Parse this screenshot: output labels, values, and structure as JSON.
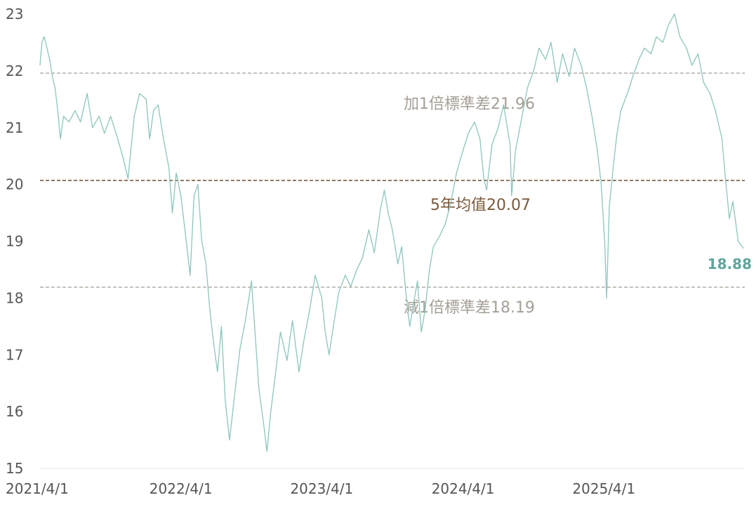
{
  "chart_data": {
    "type": "line",
    "x_ticks": [
      "2021/4/1",
      "2022/4/1",
      "2023/4/1",
      "2024/4/1",
      "2025/4/1"
    ],
    "y_ticks": [
      "15",
      "16",
      "17",
      "18",
      "19",
      "20",
      "21",
      "22",
      "23"
    ],
    "ylim": [
      15,
      23
    ],
    "xlim": [
      "2021-04-01",
      "2026-04-01"
    ],
    "grid": false,
    "series": [
      {
        "color": "#8cc5bd",
        "points": [
          [
            "2021-04-01",
            22.1
          ],
          [
            "2021-04-06",
            22.5
          ],
          [
            "2021-04-12",
            22.6
          ],
          [
            "2021-04-19",
            22.4
          ],
          [
            "2021-04-26",
            22.2
          ],
          [
            "2021-05-03",
            21.9
          ],
          [
            "2021-05-10",
            21.7
          ],
          [
            "2021-05-17",
            21.3
          ],
          [
            "2021-05-24",
            20.8
          ],
          [
            "2021-06-01",
            21.2
          ],
          [
            "2021-06-15",
            21.1
          ],
          [
            "2021-07-01",
            21.3
          ],
          [
            "2021-07-15",
            21.1
          ],
          [
            "2021-08-01",
            21.6
          ],
          [
            "2021-08-15",
            21.0
          ],
          [
            "2021-09-01",
            21.2
          ],
          [
            "2021-09-15",
            20.9
          ],
          [
            "2021-10-01",
            21.2
          ],
          [
            "2021-10-15",
            20.9
          ],
          [
            "2021-11-01",
            20.5
          ],
          [
            "2021-11-15",
            20.1
          ],
          [
            "2021-12-01",
            21.2
          ],
          [
            "2021-12-15",
            21.6
          ],
          [
            "2022-01-01",
            21.5
          ],
          [
            "2022-01-10",
            20.8
          ],
          [
            "2022-01-20",
            21.3
          ],
          [
            "2022-02-01",
            21.4
          ],
          [
            "2022-02-15",
            20.8
          ],
          [
            "2022-03-01",
            20.3
          ],
          [
            "2022-03-10",
            19.5
          ],
          [
            "2022-03-20",
            20.2
          ],
          [
            "2022-04-01",
            19.8
          ],
          [
            "2022-04-15",
            19.0
          ],
          [
            "2022-04-25",
            18.4
          ],
          [
            "2022-05-05",
            19.8
          ],
          [
            "2022-05-15",
            20.0
          ],
          [
            "2022-05-25",
            19.0
          ],
          [
            "2022-06-05",
            18.6
          ],
          [
            "2022-06-15",
            17.8
          ],
          [
            "2022-06-25",
            17.2
          ],
          [
            "2022-07-05",
            16.7
          ],
          [
            "2022-07-15",
            17.5
          ],
          [
            "2022-07-25",
            16.2
          ],
          [
            "2022-08-05",
            15.5
          ],
          [
            "2022-08-20",
            16.4
          ],
          [
            "2022-09-01",
            17.1
          ],
          [
            "2022-09-15",
            17.6
          ],
          [
            "2022-10-01",
            18.3
          ],
          [
            "2022-10-10",
            17.4
          ],
          [
            "2022-10-20",
            16.4
          ],
          [
            "2022-11-01",
            15.8
          ],
          [
            "2022-11-10",
            15.3
          ],
          [
            "2022-11-20",
            16.0
          ],
          [
            "2022-12-01",
            16.6
          ],
          [
            "2022-12-15",
            17.4
          ],
          [
            "2023-01-01",
            16.9
          ],
          [
            "2023-01-15",
            17.6
          ],
          [
            "2023-02-01",
            16.7
          ],
          [
            "2023-02-15",
            17.3
          ],
          [
            "2023-03-01",
            17.8
          ],
          [
            "2023-03-15",
            18.4
          ],
          [
            "2023-04-01",
            18.0
          ],
          [
            "2023-04-10",
            17.4
          ],
          [
            "2023-04-20",
            17.0
          ],
          [
            "2023-05-01",
            17.5
          ],
          [
            "2023-05-15",
            18.1
          ],
          [
            "2023-06-01",
            18.4
          ],
          [
            "2023-06-15",
            18.2
          ],
          [
            "2023-07-01",
            18.5
          ],
          [
            "2023-07-15",
            18.7
          ],
          [
            "2023-08-01",
            19.2
          ],
          [
            "2023-08-15",
            18.8
          ],
          [
            "2023-09-01",
            19.6
          ],
          [
            "2023-09-10",
            19.9
          ],
          [
            "2023-09-20",
            19.5
          ],
          [
            "2023-10-01",
            19.2
          ],
          [
            "2023-10-15",
            18.6
          ],
          [
            "2023-10-25",
            18.9
          ],
          [
            "2023-11-05",
            18.1
          ],
          [
            "2023-11-15",
            17.5
          ],
          [
            "2023-11-25",
            17.9
          ],
          [
            "2023-12-05",
            18.3
          ],
          [
            "2023-12-15",
            17.4
          ],
          [
            "2023-12-25",
            17.8
          ],
          [
            "2024-01-05",
            18.5
          ],
          [
            "2024-01-15",
            18.9
          ],
          [
            "2024-02-01",
            19.1
          ],
          [
            "2024-02-15",
            19.3
          ],
          [
            "2024-03-01",
            19.7
          ],
          [
            "2024-03-15",
            20.2
          ],
          [
            "2024-04-01",
            20.6
          ],
          [
            "2024-04-15",
            20.9
          ],
          [
            "2024-05-01",
            21.1
          ],
          [
            "2024-05-15",
            20.8
          ],
          [
            "2024-05-25",
            20.1
          ],
          [
            "2024-06-01",
            19.9
          ],
          [
            "2024-06-15",
            20.7
          ],
          [
            "2024-07-01",
            21.0
          ],
          [
            "2024-07-15",
            21.4
          ],
          [
            "2024-08-01",
            20.7
          ],
          [
            "2024-08-05",
            19.8
          ],
          [
            "2024-08-15",
            20.6
          ],
          [
            "2024-09-01",
            21.2
          ],
          [
            "2024-09-15",
            21.7
          ],
          [
            "2024-10-01",
            22.0
          ],
          [
            "2024-10-15",
            22.4
          ],
          [
            "2024-11-01",
            22.2
          ],
          [
            "2024-11-15",
            22.5
          ],
          [
            "2024-12-01",
            21.8
          ],
          [
            "2024-12-15",
            22.3
          ],
          [
            "2025-01-01",
            21.9
          ],
          [
            "2025-01-15",
            22.4
          ],
          [
            "2025-02-01",
            22.1
          ],
          [
            "2025-02-15",
            21.7
          ],
          [
            "2025-03-01",
            21.2
          ],
          [
            "2025-03-15",
            20.6
          ],
          [
            "2025-03-25",
            20.0
          ],
          [
            "2025-04-03",
            19.0
          ],
          [
            "2025-04-08",
            18.0
          ],
          [
            "2025-04-15",
            19.6
          ],
          [
            "2025-04-25",
            20.3
          ],
          [
            "2025-05-05",
            20.9
          ],
          [
            "2025-05-15",
            21.3
          ],
          [
            "2025-06-01",
            21.6
          ],
          [
            "2025-06-15",
            21.9
          ],
          [
            "2025-07-01",
            22.2
          ],
          [
            "2025-07-15",
            22.4
          ],
          [
            "2025-08-01",
            22.3
          ],
          [
            "2025-08-15",
            22.6
          ],
          [
            "2025-09-01",
            22.5
          ],
          [
            "2025-09-15",
            22.8
          ],
          [
            "2025-10-01",
            23.0
          ],
          [
            "2025-10-15",
            22.6
          ],
          [
            "2025-11-01",
            22.4
          ],
          [
            "2025-11-15",
            22.1
          ],
          [
            "2025-12-01",
            22.3
          ],
          [
            "2025-12-15",
            21.8
          ],
          [
            "2026-01-01",
            21.6
          ],
          [
            "2026-01-15",
            21.3
          ],
          [
            "2026-02-01",
            20.8
          ],
          [
            "2026-02-10",
            20.1
          ],
          [
            "2026-02-20",
            19.4
          ],
          [
            "2026-03-01",
            19.7
          ],
          [
            "2026-03-15",
            19.0
          ],
          [
            "2026-03-28",
            18.88
          ]
        ]
      }
    ],
    "reference_lines": [
      {
        "label": "加1倍標準差21.96",
        "value": 21.96,
        "color": "#a59f95",
        "style": "dashed"
      },
      {
        "label": "5年均值20.07",
        "value": 20.07,
        "color": "#7a5a3a",
        "style": "dashed"
      },
      {
        "label": "減1倍標準差18.19",
        "value": 18.19,
        "color": "#a59f95",
        "style": "dashed"
      }
    ],
    "last_value": {
      "label": "18.88",
      "value": 18.88,
      "color": "#5fa59b"
    }
  }
}
